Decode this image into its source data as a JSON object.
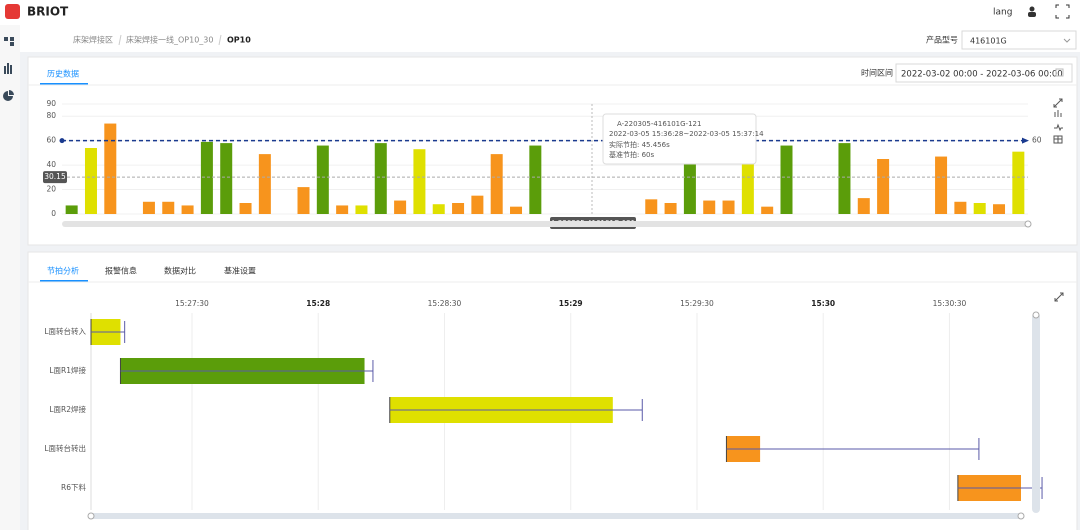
{
  "header": {
    "logo": "BRIOT",
    "user": "lang"
  },
  "breadcrumb": [
    "床架焊接区",
    "床架焊接一线_OP10_30",
    "OP10"
  ],
  "product": {
    "label": "产品型号",
    "value": "416101G"
  },
  "history_panel": {
    "tab": "历史数据",
    "range_label": "时间区间",
    "range": "2022-03-02 00:00 - 2022-03-06 00:00"
  },
  "analysis_tabs": [
    "节拍分析",
    "报警信息",
    "数据对比",
    "基准设置"
  ],
  "chart_data": [
    {
      "type": "bar",
      "values": [
        7,
        54,
        74,
        null,
        10,
        10,
        7,
        59,
        58,
        9,
        49,
        null,
        22,
        56,
        7,
        7,
        58,
        11,
        53,
        8,
        9,
        15,
        49,
        6,
        56,
        null,
        null,
        null,
        null,
        null,
        12,
        9,
        45,
        11,
        11,
        45,
        6,
        56,
        null,
        null,
        58,
        13,
        45,
        null,
        null,
        47,
        10,
        9,
        8,
        51
      ],
      "colors": [
        "#5b9d0a",
        "#dfe000",
        "#f7941d",
        null,
        "#f7941d",
        "#f7941d",
        "#f7941d",
        "#5b9d0a",
        "#5b9d0a",
        "#f7941d",
        "#f7941d",
        null,
        "#f7941d",
        "#5b9d0a",
        "#f7941d",
        "#dfe000",
        "#5b9d0a",
        "#f7941d",
        "#dfe000",
        "#dfe000",
        "#f7941d",
        "#f7941d",
        "#f7941d",
        "#f7941d",
        "#5b9d0a",
        null,
        null,
        null,
        null,
        null,
        "#f7941d",
        "#f7941d",
        "#5b9d0a",
        "#f7941d",
        "#f7941d",
        "#dfe000",
        "#f7941d",
        "#5b9d0a",
        null,
        null,
        "#5b9d0a",
        "#f7941d",
        "#f7941d",
        null,
        null,
        "#f7941d",
        "#f7941d",
        "#dfe000",
        "#f7941d",
        "#dfe000"
      ],
      "ylim": [
        0,
        90
      ],
      "yticks": [
        0,
        20,
        40,
        60,
        80,
        90
      ],
      "grid": true,
      "reference_line": 60,
      "reference_color": "#1a3a8f",
      "marker_value": 30.15,
      "pointer_label": "A-220305-416101G-121",
      "tooltip": {
        "title": "A-220305-416101G-121",
        "time": "2022-03-05 15:36:28~2022-03-05 15:37:14",
        "lines": [
          "实际节拍: 45.456s",
          "基准节拍: 60s"
        ]
      }
    },
    {
      "type": "range",
      "categories": [
        "L面转台转入",
        "L面R1焊接",
        "L面R2焊接",
        "L面转台转出",
        "R6下料"
      ],
      "starts": [
        55626,
        55633,
        55697,
        55777,
        55832
      ],
      "ends": [
        55633,
        55691,
        55750,
        55785,
        55847
      ],
      "whiskers": [
        55634,
        55693,
        55757,
        55837,
        55852
      ],
      "colors": [
        "#dfe000",
        "#5b9d0a",
        "#dfe000",
        "#f7941d",
        "#f7941d"
      ],
      "whisker_color": "#5a5aa8",
      "xlim": [
        55626,
        55847
      ],
      "xticks": [
        {
          "value": 55650,
          "label": "15:27:30"
        },
        {
          "value": 55680,
          "label": "15:28"
        },
        {
          "value": 55710,
          "label": "15:28:30"
        },
        {
          "value": 55740,
          "label": "15:29"
        },
        {
          "value": 55770,
          "label": "15:29:30"
        },
        {
          "value": 55800,
          "label": "15:30"
        },
        {
          "value": 55830,
          "label": "15:30:30"
        }
      ],
      "grid": true
    }
  ]
}
